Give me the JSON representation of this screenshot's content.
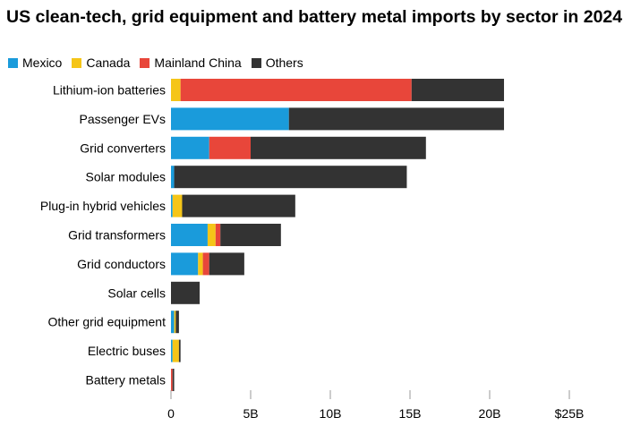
{
  "chart_data": {
    "type": "bar",
    "orientation": "horizontal",
    "stacked": true,
    "title": "US clean-tech, grid equipment and battery metal imports by sector in 2024",
    "categories": [
      "Lithium-ion batteries",
      "Passenger EVs",
      "Grid converters",
      "Solar modules",
      "Plug-in hybrid vehicles",
      "Grid transformers",
      "Grid conductors",
      "Solar cells",
      "Other grid equipment",
      "Electric buses",
      "Battery metals"
    ],
    "series": [
      {
        "name": "Mexico",
        "color": "#1a9bdb",
        "values": [
          0.0,
          7.4,
          2.4,
          0.2,
          0.1,
          2.3,
          1.7,
          0.0,
          0.2,
          0.1,
          0.0
        ]
      },
      {
        "name": "Canada",
        "color": "#f5c518",
        "values": [
          0.6,
          0.0,
          0.0,
          0.0,
          0.6,
          0.5,
          0.3,
          0.0,
          0.1,
          0.4,
          0.0
        ]
      },
      {
        "name": "Mainland China",
        "color": "#e8463a",
        "values": [
          14.5,
          0.0,
          2.6,
          0.0,
          0.0,
          0.3,
          0.4,
          0.0,
          0.0,
          0.0,
          0.1
        ]
      },
      {
        "name": "Others",
        "color": "#333333",
        "values": [
          5.8,
          13.5,
          11.0,
          14.6,
          7.1,
          3.8,
          2.2,
          1.8,
          0.2,
          0.1,
          0.1
        ]
      }
    ],
    "xlim": [
      0,
      25
    ],
    "xticks": [
      0,
      5,
      10,
      15,
      20,
      25
    ],
    "xtick_labels": [
      "0",
      "5B",
      "10B",
      "15B",
      "20B",
      "$25B"
    ],
    "legend_position": "top-left",
    "grid": false
  }
}
